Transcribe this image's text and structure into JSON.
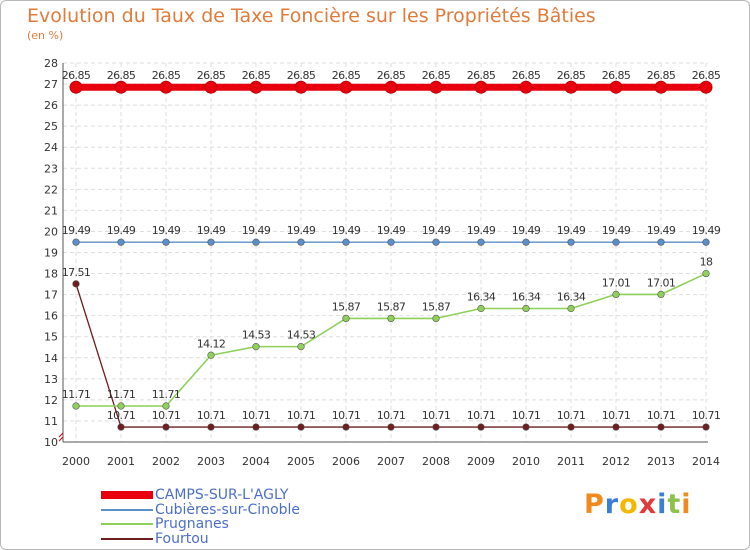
{
  "title": "Evolution du Taux de Taxe Foncière sur les Propriétés Bâties",
  "unit_label": "(en %)",
  "logo_text": "Proxiti",
  "logo_colors": [
    "#f08a1c",
    "#3a7ed6",
    "#f5b800",
    "#e03a3a",
    "#3a7ed6",
    "#8bc34a",
    "#f08a1c"
  ],
  "chart_data": {
    "type": "line",
    "title": "Evolution du Taux de Taxe Foncière sur les Propriétés Bâties",
    "ylabel": "(en %)",
    "xlabel": "",
    "ylim": [
      10,
      28
    ],
    "yticks": [
      "10",
      "11",
      "12",
      "13",
      "14",
      "15",
      "16",
      "17",
      "18",
      "19",
      "20",
      "21",
      "22",
      "23",
      "24",
      "25",
      "26",
      "27",
      "28"
    ],
    "categories": [
      "2000",
      "2001",
      "2002",
      "2003",
      "2004",
      "2005",
      "2006",
      "2007",
      "2008",
      "2009",
      "2010",
      "2011",
      "2012",
      "2013",
      "2014"
    ],
    "grid": true,
    "legend_position": "bottom-left",
    "series": [
      {
        "name": "CAMPS-SUR-L'AGLY",
        "color": "#e8000e",
        "values": [
          26.85,
          26.85,
          26.85,
          26.85,
          26.85,
          26.85,
          26.85,
          26.85,
          26.85,
          26.85,
          26.85,
          26.85,
          26.85,
          26.85,
          26.85
        ],
        "labels": [
          "26.85",
          "26.85",
          "26.85",
          "26.85",
          "26.85",
          "26.85",
          "26.85",
          "26.85",
          "26.85",
          "26.85",
          "26.85",
          "26.85",
          "26.85",
          "26.85",
          "26.85"
        ]
      },
      {
        "name": "Cubières-sur-Cinoble",
        "color": "#5b8fc9",
        "values": [
          19.49,
          19.49,
          19.49,
          19.49,
          19.49,
          19.49,
          19.49,
          19.49,
          19.49,
          19.49,
          19.49,
          19.49,
          19.49,
          19.49,
          19.49
        ],
        "labels": [
          "19.49",
          "19.49",
          "19.49",
          "19.49",
          "19.49",
          "19.49",
          "19.49",
          "19.49",
          "19.49",
          "19.49",
          "19.49",
          "19.49",
          "19.49",
          "19.49",
          "19.49"
        ]
      },
      {
        "name": "Prugnanes",
        "color": "#8fd05a",
        "values": [
          11.71,
          11.71,
          11.71,
          14.12,
          14.53,
          14.53,
          15.87,
          15.87,
          15.87,
          16.34,
          16.34,
          16.34,
          17.01,
          17.01,
          18
        ],
        "labels": [
          "11.71",
          "11.71",
          "11.71",
          "14.12",
          "14.53",
          "14.53",
          "15.87",
          "15.87",
          "15.87",
          "16.34",
          "16.34",
          "16.34",
          "17.01",
          "17.01",
          "18"
        ]
      },
      {
        "name": "Fourtou",
        "color": "#6e1e1e",
        "values": [
          17.51,
          10.71,
          10.71,
          10.71,
          10.71,
          10.71,
          10.71,
          10.71,
          10.71,
          10.71,
          10.71,
          10.71,
          10.71,
          10.71,
          10.71
        ],
        "labels": [
          "17.51",
          "10.71",
          "10.71",
          "10.71",
          "10.71",
          "10.71",
          "10.71",
          "10.71",
          "10.71",
          "10.71",
          "10.71",
          "10.71",
          "10.71",
          "10.71",
          "10.71"
        ]
      }
    ]
  }
}
